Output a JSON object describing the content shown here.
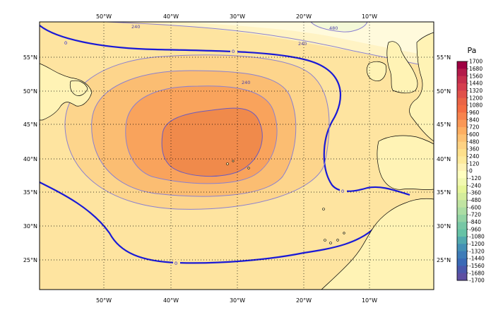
{
  "map": {
    "lon_labels": [
      "50°W",
      "40°W",
      "30°W",
      "20°W",
      "10°W"
    ],
    "lat_labels": [
      "55°N",
      "50°N",
      "45°N",
      "40°N",
      "35°N",
      "30°N",
      "25°N"
    ],
    "contour_labels": {
      "zero": "0",
      "c240": "240",
      "c480": "480"
    },
    "land_color": "#fff3b5",
    "coast_color": "#000000",
    "contour_zero_color": "#1a1ad6",
    "contour_color": "#8a80d0"
  },
  "colorbar": {
    "unit": "Pa",
    "levels": [
      "1700",
      "1680",
      "1560",
      "1440",
      "1320",
      "1200",
      "1080",
      "960",
      "840",
      "720",
      "600",
      "480",
      "360",
      "240",
      "120",
      "0",
      "-120",
      "-240",
      "-360",
      "-480",
      "-600",
      "-720",
      "-840",
      "-960",
      "-1080",
      "-1200",
      "-1320",
      "-1440",
      "-1560",
      "-1680",
      "-1700"
    ],
    "colors": [
      "#9e0142",
      "#b31b4a",
      "#c62f4d",
      "#d53e4f",
      "#e0514a",
      "#ea6446",
      "#f46d43",
      "#f7834d",
      "#fa9856",
      "#fdae61",
      "#fdc173",
      "#fed283",
      "#fee08b",
      "#feea9b",
      "#fff3b5",
      "#ffffbf",
      "#f2f9b0",
      "#e6f598",
      "#d4ed9c",
      "#c0e4a2",
      "#abdda4",
      "#92d3a4",
      "#77c7a5",
      "#66c2a5",
      "#52a9ae",
      "#4490b5",
      "#3e7cb8",
      "#3a6ab6",
      "#4a58ac",
      "#5e4fa2"
    ]
  }
}
